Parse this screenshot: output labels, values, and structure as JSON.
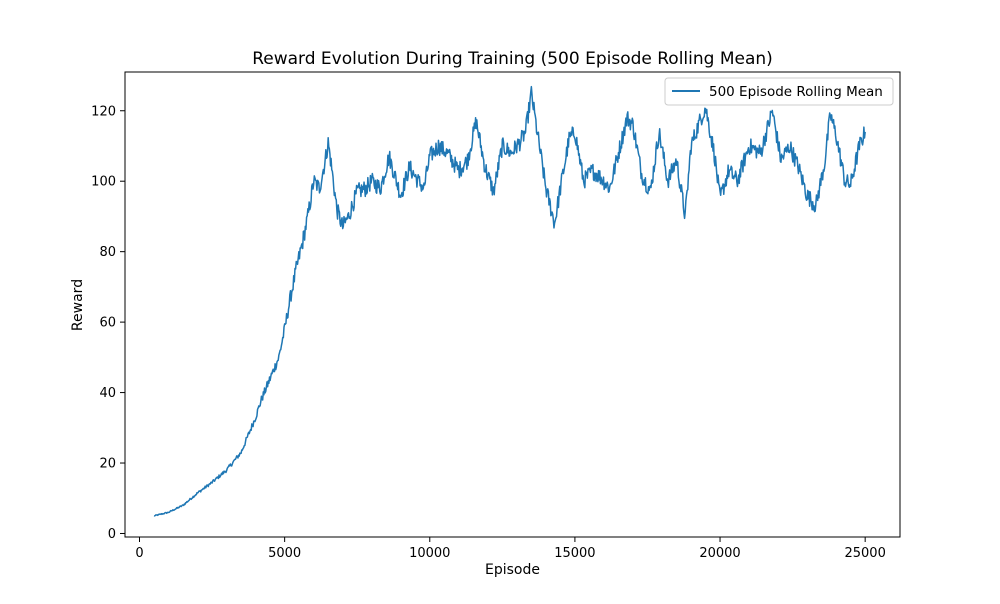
{
  "chart_data": {
    "type": "line",
    "title": "Reward Evolution During Training (500 Episode Rolling Mean)",
    "xlabel": "Episode",
    "ylabel": "Reward",
    "xlim": [
      -500,
      26200
    ],
    "ylim": [
      -1,
      131
    ],
    "xticks": [
      0,
      5000,
      10000,
      15000,
      20000,
      25000
    ],
    "yticks": [
      0,
      20,
      40,
      60,
      80,
      100,
      120
    ],
    "grid": false,
    "legend_position": "top-right",
    "line_color": "#1f77b4",
    "series": [
      {
        "name": "500 Episode Rolling Mean",
        "color": "#1f77b4",
        "x": [
          500,
          1000,
          1500,
          2000,
          2500,
          3000,
          3500,
          4000,
          4200,
          4500,
          4800,
          5000,
          5200,
          5400,
          5600,
          5800,
          6000,
          6200,
          6400,
          6500,
          6600,
          6800,
          7000,
          7200,
          7500,
          7800,
          8000,
          8300,
          8600,
          9000,
          9300,
          9600,
          9800,
          10000,
          10300,
          10600,
          11000,
          11300,
          11600,
          11900,
          12200,
          12500,
          12800,
          13100,
          13300,
          13500,
          13700,
          14000,
          14300,
          14500,
          14800,
          15000,
          15300,
          15600,
          15900,
          16200,
          16500,
          16800,
          17000,
          17300,
          17600,
          17900,
          18200,
          18500,
          18800,
          19000,
          19300,
          19500,
          19800,
          20000,
          20300,
          20600,
          21000,
          21400,
          21800,
          22100,
          22400,
          22700,
          23000,
          23300,
          23600,
          23800,
          24000,
          24300,
          24500,
          24800,
          25000
        ],
        "y": [
          5,
          6,
          8,
          11.5,
          14.5,
          18,
          23,
          33,
          38,
          44,
          50,
          58,
          67,
          75,
          82,
          90,
          100,
          98,
          106,
          111,
          105,
          92,
          87,
          90,
          97,
          98,
          100,
          98,
          107,
          96,
          104,
          100,
          98,
          107,
          110,
          108,
          103,
          106,
          117,
          104,
          97,
          110,
          108,
          111,
          114,
          125,
          114,
          98,
          88,
          98,
          112,
          114,
          100,
          103,
          101,
          98,
          108,
          118,
          116,
          102,
          97,
          114,
          100,
          106,
          90,
          110,
          117,
          121,
          108,
          95,
          103,
          100,
          110,
          108,
          120,
          106,
          110,
          104,
          96,
          93,
          105,
          119,
          113,
          100,
          99,
          110,
          114
        ]
      }
    ]
  }
}
